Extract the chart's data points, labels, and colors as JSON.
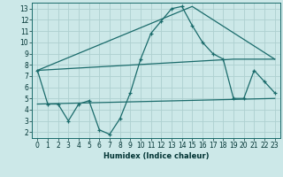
{
  "xlabel": "Humidex (Indice chaleur)",
  "bg_color": "#cce8e8",
  "grid_color": "#aed0d0",
  "line_color": "#1a6b6b",
  "xlim": [
    -0.5,
    23.5
  ],
  "ylim": [
    1.5,
    13.5
  ],
  "xticks": [
    0,
    1,
    2,
    3,
    4,
    5,
    6,
    7,
    8,
    9,
    10,
    11,
    12,
    13,
    14,
    15,
    16,
    17,
    18,
    19,
    20,
    21,
    22,
    23
  ],
  "yticks": [
    2,
    3,
    4,
    5,
    6,
    7,
    8,
    9,
    10,
    11,
    12,
    13
  ],
  "series1_x": [
    0,
    1,
    2,
    3,
    4,
    5,
    6,
    7,
    8,
    9,
    10,
    11,
    12,
    13,
    14,
    15,
    16,
    17,
    18,
    19,
    20,
    21,
    22,
    23
  ],
  "series1_y": [
    7.5,
    4.5,
    4.5,
    3.0,
    4.5,
    4.8,
    2.2,
    1.8,
    3.2,
    5.5,
    8.5,
    10.8,
    11.9,
    13.0,
    13.2,
    11.5,
    10.0,
    9.0,
    8.5,
    5.0,
    5.0,
    7.5,
    6.5,
    5.5
  ],
  "line2_x": [
    0,
    15,
    23
  ],
  "line2_y": [
    7.5,
    13.2,
    8.5
  ],
  "line3_x": [
    0,
    19,
    23
  ],
  "line3_y": [
    7.5,
    8.5,
    8.5
  ],
  "line4_x": [
    0,
    23
  ],
  "line4_y": [
    4.5,
    5.0
  ],
  "xlabel_fontsize": 6.0,
  "tick_fontsize": 5.5
}
